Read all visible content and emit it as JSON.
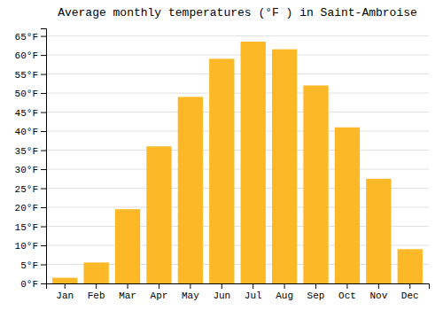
{
  "chart_data": {
    "type": "bar",
    "title": "Average monthly temperatures (°F ) in Saint-Ambroise",
    "categories": [
      "Jan",
      "Feb",
      "Mar",
      "Apr",
      "May",
      "Jun",
      "Jul",
      "Aug",
      "Sep",
      "Oct",
      "Nov",
      "Dec"
    ],
    "values": [
      1.5,
      5.5,
      19.5,
      36.0,
      49.0,
      59.0,
      63.5,
      61.5,
      52.0,
      41.0,
      27.5,
      9.0
    ],
    "color": "#FDB827",
    "ylim": [
      0,
      67
    ],
    "yticks": [
      {
        "value": 0,
        "label": "0°F"
      },
      {
        "value": 5,
        "label": "5°F"
      },
      {
        "value": 10,
        "label": "10°F"
      },
      {
        "value": 15,
        "label": "15°F"
      },
      {
        "value": 20,
        "label": "20°F"
      },
      {
        "value": 25,
        "label": "25°F"
      },
      {
        "value": 30,
        "label": "30°F"
      },
      {
        "value": 35,
        "label": "35°F"
      },
      {
        "value": 40,
        "label": "40°F"
      },
      {
        "value": 45,
        "label": "45°F"
      },
      {
        "value": 50,
        "label": "50°F"
      },
      {
        "value": 55,
        "label": "55°F"
      },
      {
        "value": 60,
        "label": "60°F"
      },
      {
        "value": 65,
        "label": "65°F"
      }
    ],
    "grid": true
  }
}
